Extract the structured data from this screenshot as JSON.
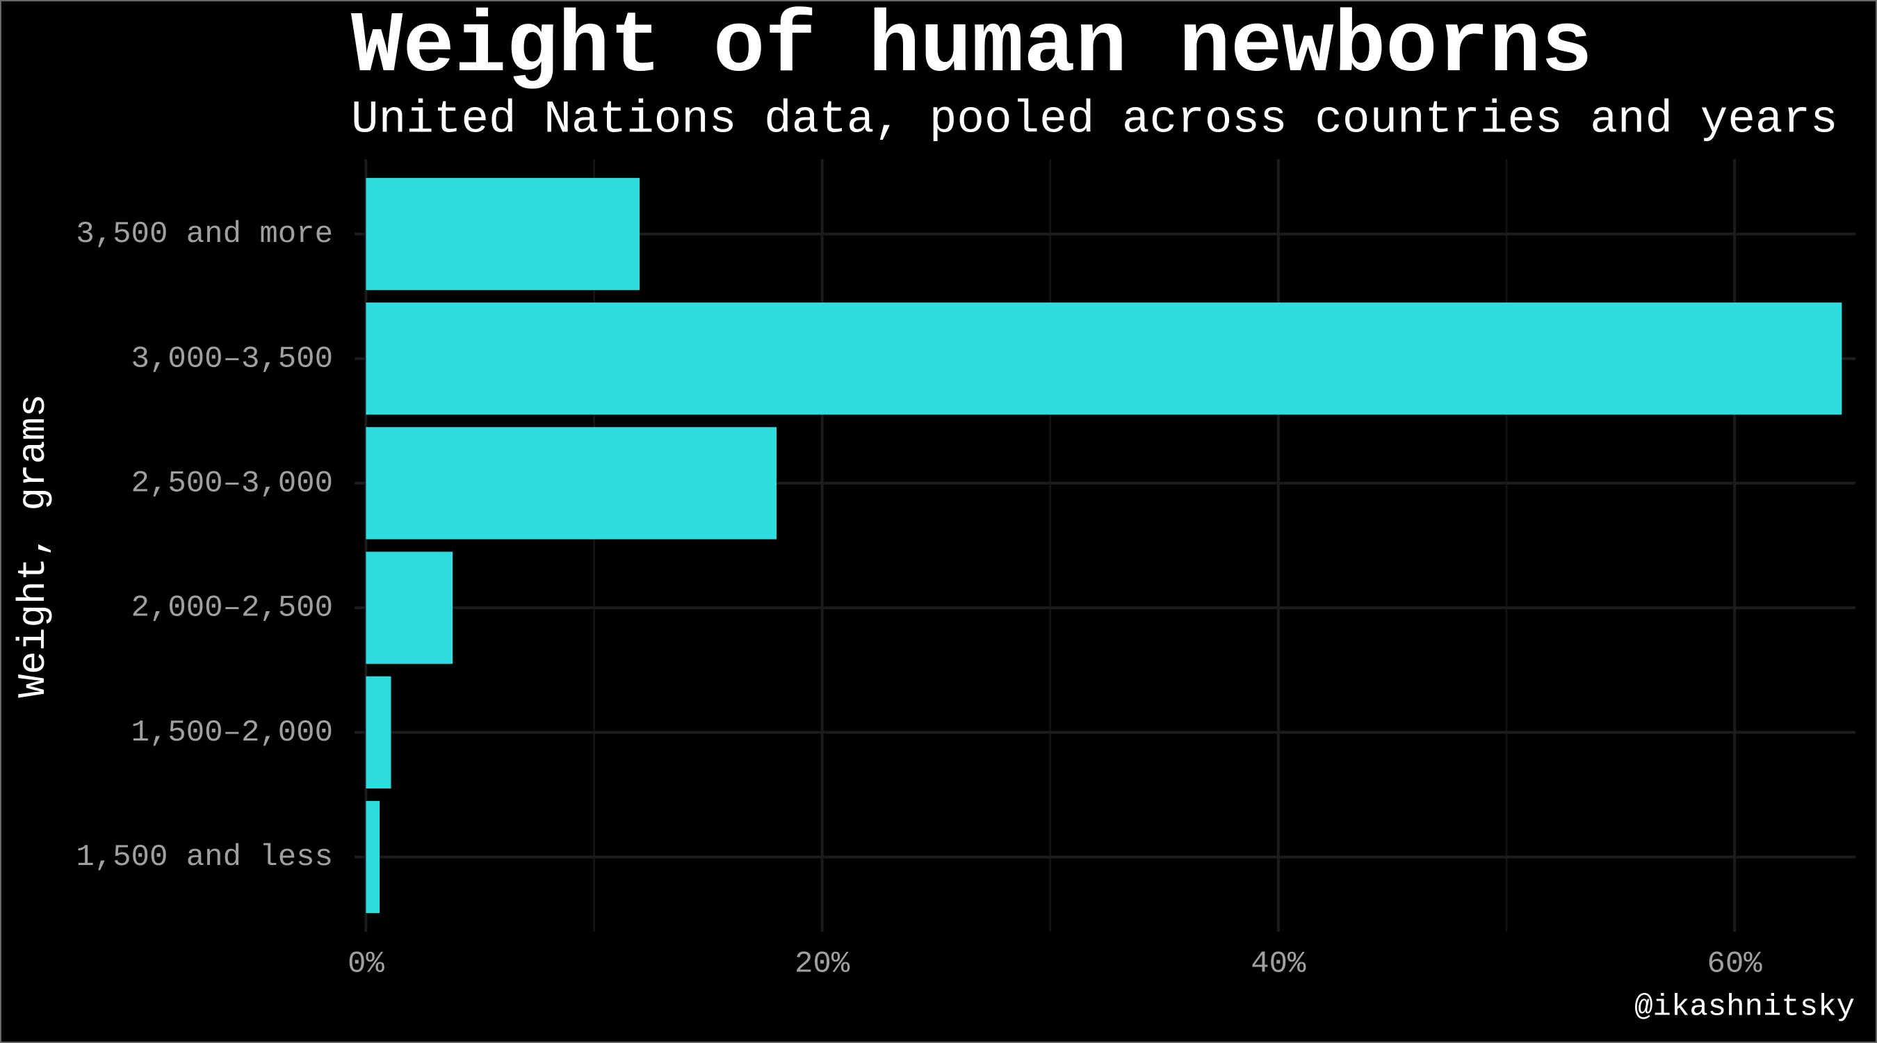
{
  "chart_data": {
    "type": "bar",
    "orientation": "horizontal",
    "title": "Weight of human newborns",
    "subtitle": "United Nations data, pooled across countries and years",
    "y_label": "Weight, grams",
    "caption": "@ikashnitsky",
    "categories": [
      "3,500 and more",
      "3,000–3,500",
      "2,500–3,000",
      "2,000–2,500",
      "1,500–2,000",
      "1,500 and less"
    ],
    "values": [
      12,
      64.7,
      18,
      3.8,
      1.1,
      0.6
    ],
    "color": "#2edde0",
    "xlim": [
      -0.5,
      65.3
    ],
    "xticks": [
      {
        "value": 0,
        "label": "0%"
      },
      {
        "value": 20,
        "label": "20%"
      },
      {
        "value": 40,
        "label": "40%"
      },
      {
        "value": 60,
        "label": "60%"
      }
    ],
    "minor_xticks": [
      10,
      30,
      50
    ],
    "grid": true
  }
}
